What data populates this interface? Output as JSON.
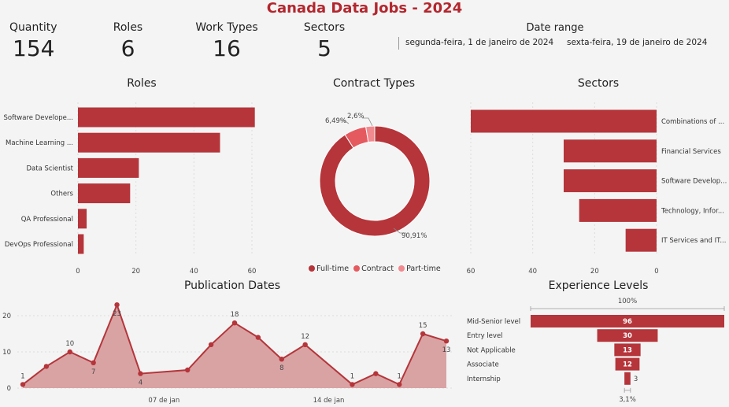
{
  "title": "Canada Data Jobs - 2024",
  "kpis": [
    {
      "label": "Quantity",
      "value": "154"
    },
    {
      "label": "Roles",
      "value": "6"
    },
    {
      "label": "Work Types",
      "value": "16"
    },
    {
      "label": "Sectors",
      "value": "5"
    }
  ],
  "date_range": {
    "label": "Date range",
    "start": "segunda-feira, 1 de janeiro de 2024",
    "end": "sexta-feira, 19 de janeiro de 2024"
  },
  "colors": {
    "primary": "#b5353a",
    "light": "#e55a5f",
    "lighter": "#f08a90",
    "area": "#d9a3a4"
  },
  "chart_data": [
    {
      "id": "roles",
      "type": "bar",
      "orientation": "horizontal",
      "title": "Roles",
      "categories": [
        "Software Develope...",
        "Machine Learning ...",
        "Data Scientist",
        "Others",
        "QA Professional",
        "DevOps Professional"
      ],
      "values": [
        61,
        49,
        21,
        18,
        3,
        2
      ],
      "xlim": [
        0,
        65
      ],
      "xticks": [
        0,
        20,
        40,
        60
      ]
    },
    {
      "id": "contract",
      "type": "pie",
      "variant": "donut",
      "title": "Contract Types",
      "categories": [
        "Full-time",
        "Contract",
        "Part-time"
      ],
      "values": [
        90.91,
        6.49,
        2.6
      ],
      "labels": [
        "90,91%",
        "6,49%",
        "2,6%"
      ],
      "colors": [
        "#b5353a",
        "#e55a5f",
        "#f08a90"
      ],
      "legend": "bottom"
    },
    {
      "id": "sectors",
      "type": "bar",
      "orientation": "horizontal-reversed",
      "title": "Sectors",
      "categories": [
        "Combinations of ...",
        "Financial Services",
        "Software Develop...",
        "Technology, Infor...",
        "IT Services and IT..."
      ],
      "values": [
        60,
        30,
        30,
        25,
        10
      ],
      "xlim": [
        0,
        60
      ],
      "xticks": [
        60,
        40,
        20,
        0
      ]
    },
    {
      "id": "pubdates",
      "type": "area",
      "title": "Publication Dates",
      "x": [
        "2024-01-01",
        "2024-01-02",
        "2024-01-03",
        "2024-01-04",
        "2024-01-05",
        "2024-01-06",
        "2024-01-08",
        "2024-01-09",
        "2024-01-10",
        "2024-01-11",
        "2024-01-12",
        "2024-01-13",
        "2024-01-15",
        "2024-01-16",
        "2024-01-17",
        "2024-01-18",
        "2024-01-19"
      ],
      "values": [
        1,
        6,
        10,
        7,
        23,
        4,
        5,
        12,
        18,
        14,
        8,
        12,
        1,
        4,
        1,
        15,
        13
      ],
      "point_labels": [
        "1",
        "",
        "10",
        "7",
        "23",
        "4",
        "",
        "",
        "18",
        "",
        "8",
        "12",
        "1",
        "",
        "1",
        "15",
        "13"
      ],
      "ylim": [
        0,
        24
      ],
      "yticks": [
        0,
        10,
        20
      ],
      "xticklabels": [
        {
          "x": "2024-01-07",
          "label": "07 de jan"
        },
        {
          "x": "2024-01-14",
          "label": "14 de jan"
        }
      ]
    },
    {
      "id": "experience",
      "type": "bar",
      "variant": "funnel",
      "title": "Experience Levels",
      "categories": [
        "Mid-Senior level",
        "Entry level",
        "Not Applicable",
        "Associate",
        "Internship"
      ],
      "values": [
        96,
        30,
        13,
        12,
        3
      ],
      "top_label": "100%",
      "bottom_label": "3,1%"
    }
  ]
}
